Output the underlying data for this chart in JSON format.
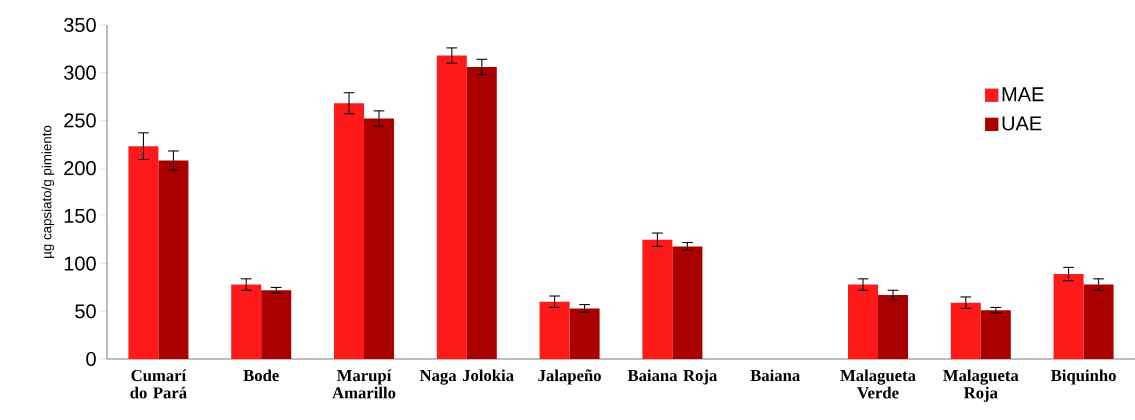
{
  "chart_data": {
    "type": "bar",
    "ylabel": "µg capsiato/g pimiento",
    "categories": [
      "Cumarí do Pará",
      "Bode",
      "Marupí Amarillo",
      "Naga Jolokia",
      "Jalapeño",
      "Baiana Roja",
      "Baiana",
      "Malagueta Verde",
      "Malagueta Roja",
      "Biquinho"
    ],
    "series": [
      {
        "name": "MAE",
        "color": "#ff1a1a",
        "values": [
          223,
          78,
          268,
          318,
          60,
          125,
          0,
          78,
          59,
          89
        ],
        "errors": [
          14,
          6,
          11,
          8,
          6,
          7,
          null,
          6,
          6,
          7
        ]
      },
      {
        "name": "UAE",
        "color": "#aa0000",
        "values": [
          208,
          72,
          252,
          306,
          53,
          118,
          0,
          67,
          51,
          78
        ],
        "errors": [
          10,
          3,
          8,
          8,
          4,
          4,
          null,
          5,
          3,
          6
        ]
      }
    ],
    "ylim": [
      0,
      350
    ],
    "yticks": [
      0,
      50,
      100,
      150,
      200,
      250,
      300,
      350
    ],
    "legend": "top right",
    "grid": false
  }
}
